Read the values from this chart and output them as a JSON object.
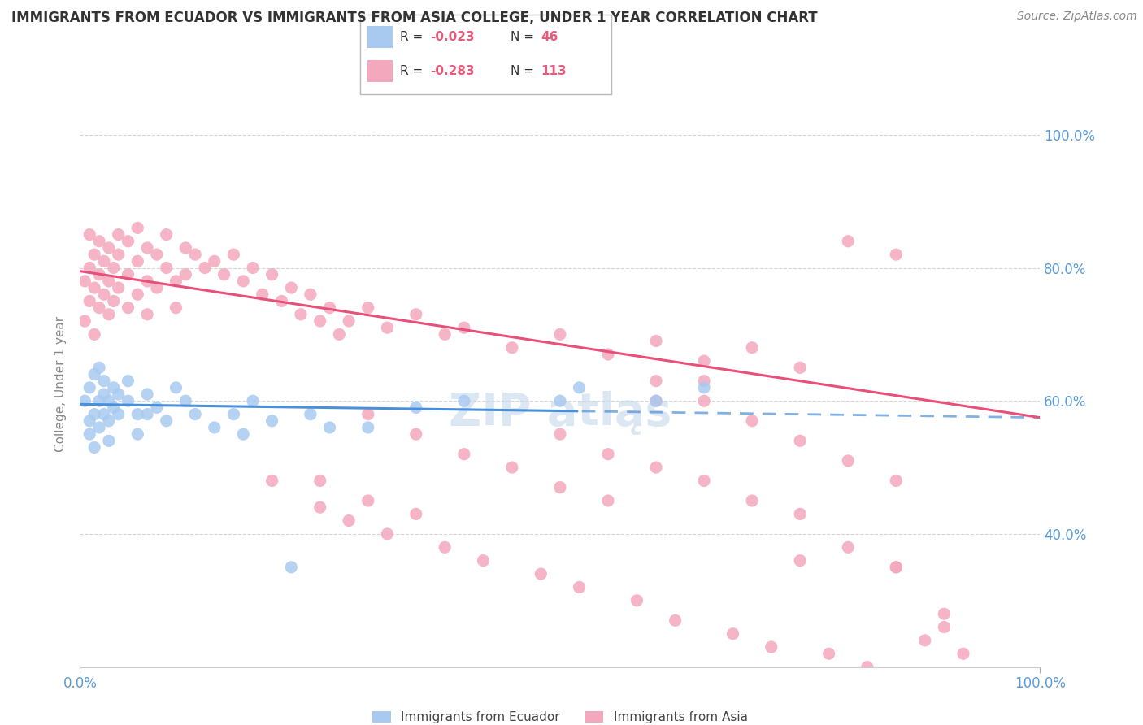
{
  "title": "IMMIGRANTS FROM ECUADOR VS IMMIGRANTS FROM ASIA COLLEGE, UNDER 1 YEAR CORRELATION CHART",
  "source": "Source: ZipAtlas.com",
  "ylabel": "College, Under 1 year",
  "xlim": [
    0.0,
    1.0
  ],
  "ylim": [
    0.2,
    1.05
  ],
  "y_ticks": [
    0.4,
    0.6,
    0.8,
    1.0
  ],
  "y_tick_labels": [
    "40.0%",
    "60.0%",
    "80.0%",
    "100.0%"
  ],
  "x_tick_labels": [
    "0.0%",
    "100.0%"
  ],
  "ecuador_color": "#a8caf0",
  "ecuador_edge_color": "#6aaee8",
  "asia_color": "#f4a8be",
  "asia_edge_color": "#f07090",
  "ecuador_line_color": "#4a90d9",
  "asia_line_color": "#e8507a",
  "background_color": "#ffffff",
  "grid_color": "#cccccc",
  "label_color": "#5b9bd5",
  "text_color": "#444444",
  "watermark_color": "#c5d8ed",
  "ecuador_x": [
    0.005,
    0.01,
    0.01,
    0.01,
    0.015,
    0.015,
    0.015,
    0.02,
    0.02,
    0.02,
    0.025,
    0.025,
    0.025,
    0.03,
    0.03,
    0.03,
    0.035,
    0.035,
    0.04,
    0.04,
    0.05,
    0.05,
    0.06,
    0.06,
    0.07,
    0.07,
    0.08,
    0.09,
    0.1,
    0.11,
    0.12,
    0.14,
    0.16,
    0.17,
    0.18,
    0.2,
    0.22,
    0.24,
    0.26,
    0.3,
    0.35,
    0.4,
    0.5,
    0.52,
    0.6,
    0.65
  ],
  "ecuador_y": [
    0.6,
    0.57,
    0.62,
    0.55,
    0.58,
    0.53,
    0.64,
    0.6,
    0.56,
    0.65,
    0.61,
    0.58,
    0.63,
    0.6,
    0.57,
    0.54,
    0.62,
    0.59,
    0.61,
    0.58,
    0.63,
    0.6,
    0.58,
    0.55,
    0.61,
    0.58,
    0.59,
    0.57,
    0.62,
    0.6,
    0.58,
    0.56,
    0.58,
    0.55,
    0.6,
    0.57,
    0.35,
    0.58,
    0.56,
    0.56,
    0.59,
    0.6,
    0.6,
    0.62,
    0.6,
    0.62
  ],
  "asia_x": [
    0.005,
    0.005,
    0.01,
    0.01,
    0.01,
    0.015,
    0.015,
    0.015,
    0.02,
    0.02,
    0.02,
    0.025,
    0.025,
    0.03,
    0.03,
    0.03,
    0.035,
    0.035,
    0.04,
    0.04,
    0.04,
    0.05,
    0.05,
    0.05,
    0.06,
    0.06,
    0.06,
    0.07,
    0.07,
    0.07,
    0.08,
    0.08,
    0.09,
    0.09,
    0.1,
    0.1,
    0.11,
    0.11,
    0.12,
    0.13,
    0.14,
    0.15,
    0.16,
    0.17,
    0.18,
    0.19,
    0.2,
    0.21,
    0.22,
    0.23,
    0.24,
    0.25,
    0.26,
    0.27,
    0.28,
    0.3,
    0.32,
    0.35,
    0.38,
    0.4,
    0.45,
    0.5,
    0.55,
    0.6,
    0.65,
    0.7,
    0.75,
    0.8,
    0.85,
    0.85,
    0.3,
    0.35,
    0.4,
    0.45,
    0.5,
    0.55,
    0.6,
    0.65,
    0.25,
    0.3,
    0.35,
    0.5,
    0.55,
    0.6,
    0.65,
    0.7,
    0.75,
    0.75,
    0.8,
    0.85,
    0.9,
    0.2,
    0.25,
    0.28,
    0.32,
    0.38,
    0.42,
    0.48,
    0.52,
    0.58,
    0.62,
    0.68,
    0.72,
    0.78,
    0.82,
    0.88,
    0.92,
    0.6,
    0.65,
    0.7,
    0.75,
    0.8,
    0.85,
    0.9
  ],
  "asia_y": [
    0.72,
    0.78,
    0.75,
    0.8,
    0.85,
    0.77,
    0.82,
    0.7,
    0.79,
    0.84,
    0.74,
    0.81,
    0.76,
    0.83,
    0.78,
    0.73,
    0.8,
    0.75,
    0.85,
    0.82,
    0.77,
    0.84,
    0.79,
    0.74,
    0.86,
    0.81,
    0.76,
    0.83,
    0.78,
    0.73,
    0.82,
    0.77,
    0.85,
    0.8,
    0.78,
    0.74,
    0.83,
    0.79,
    0.82,
    0.8,
    0.81,
    0.79,
    0.82,
    0.78,
    0.8,
    0.76,
    0.79,
    0.75,
    0.77,
    0.73,
    0.76,
    0.72,
    0.74,
    0.7,
    0.72,
    0.74,
    0.71,
    0.73,
    0.7,
    0.71,
    0.68,
    0.7,
    0.67,
    0.69,
    0.66,
    0.68,
    0.65,
    0.84,
    0.82,
    0.35,
    0.58,
    0.55,
    0.52,
    0.5,
    0.47,
    0.45,
    0.6,
    0.63,
    0.48,
    0.45,
    0.43,
    0.55,
    0.52,
    0.5,
    0.48,
    0.45,
    0.43,
    0.36,
    0.38,
    0.35,
    0.28,
    0.48,
    0.44,
    0.42,
    0.4,
    0.38,
    0.36,
    0.34,
    0.32,
    0.3,
    0.27,
    0.25,
    0.23,
    0.22,
    0.2,
    0.24,
    0.22,
    0.63,
    0.6,
    0.57,
    0.54,
    0.51,
    0.48,
    0.26
  ]
}
